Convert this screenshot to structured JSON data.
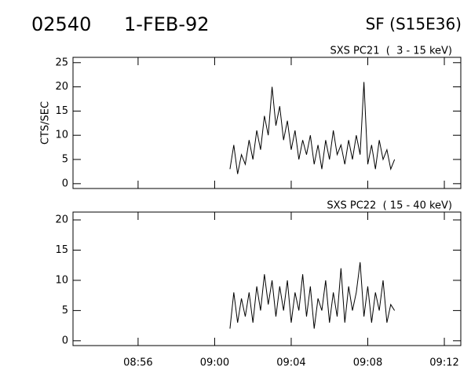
{
  "header": {
    "id": "02540",
    "date": "1-FEB-92",
    "target": "SF (S15E36)"
  },
  "chart_data": [
    {
      "type": "line",
      "title": "SXS PC21  (  3 - 15 keV)",
      "ylabel": "CTS/SEC",
      "color": "#000000",
      "x": [
        60.8,
        61.0,
        61.2,
        61.4,
        61.6,
        61.8,
        62.0,
        62.2,
        62.4,
        62.6,
        62.8,
        63.0,
        63.2,
        63.4,
        63.6,
        63.8,
        64.0,
        64.2,
        64.4,
        64.6,
        64.8,
        65.0,
        65.2,
        65.4,
        65.6,
        65.8,
        66.0,
        66.2,
        66.4,
        66.6,
        66.8,
        67.0,
        67.2,
        67.4,
        67.6,
        67.8,
        68.0,
        68.2,
        68.4,
        68.6,
        68.8,
        69.0,
        69.2,
        69.4
      ],
      "values": [
        3,
        8,
        2,
        6,
        4,
        9,
        5,
        11,
        7,
        14,
        10,
        20,
        12,
        16,
        9,
        13,
        7,
        11,
        5,
        9,
        6,
        10,
        4,
        8,
        3,
        9,
        5,
        11,
        6,
        8,
        4,
        9,
        5,
        10,
        6,
        21,
        4,
        8,
        3,
        9,
        5,
        7,
        3,
        5
      ],
      "xlim": [
        52.6,
        72.86
      ],
      "xticks": [
        56,
        60,
        64,
        68,
        72
      ],
      "ylim": [
        -1,
        26.1
      ],
      "yticks": [
        0,
        5,
        10,
        15,
        20,
        25
      ]
    },
    {
      "type": "line",
      "title": "SXS PC22  ( 15 - 40 keV)",
      "color": "#000000",
      "x": [
        60.8,
        61.0,
        61.2,
        61.4,
        61.6,
        61.8,
        62.0,
        62.2,
        62.4,
        62.6,
        62.8,
        63.0,
        63.2,
        63.4,
        63.6,
        63.8,
        64.0,
        64.2,
        64.4,
        64.6,
        64.8,
        65.0,
        65.2,
        65.4,
        65.6,
        65.8,
        66.0,
        66.2,
        66.4,
        66.6,
        66.8,
        67.0,
        67.2,
        67.4,
        67.6,
        67.8,
        68.0,
        68.2,
        68.4,
        68.6,
        68.8,
        69.0,
        69.2,
        69.4
      ],
      "values": [
        2,
        8,
        3,
        7,
        4,
        8,
        3,
        9,
        5,
        11,
        6,
        10,
        4,
        9,
        5,
        10,
        3,
        8,
        5,
        11,
        4,
        9,
        2,
        7,
        5,
        10,
        3,
        8,
        4,
        12,
        3,
        9,
        5,
        8,
        13,
        4,
        9,
        3,
        8,
        5,
        10,
        3,
        6,
        5
      ],
      "xlim": [
        52.6,
        72.86
      ],
      "xticks": [
        {
          "value": 56,
          "label": "08:56"
        },
        {
          "value": 60,
          "label": "09:00"
        },
        {
          "value": 64,
          "label": "09:04"
        },
        {
          "value": 68,
          "label": "09:08"
        },
        {
          "value": 72,
          "label": "09:12"
        }
      ],
      "ylim": [
        -0.8,
        21.3
      ],
      "yticks": [
        0,
        5,
        10,
        15,
        20
      ]
    }
  ]
}
